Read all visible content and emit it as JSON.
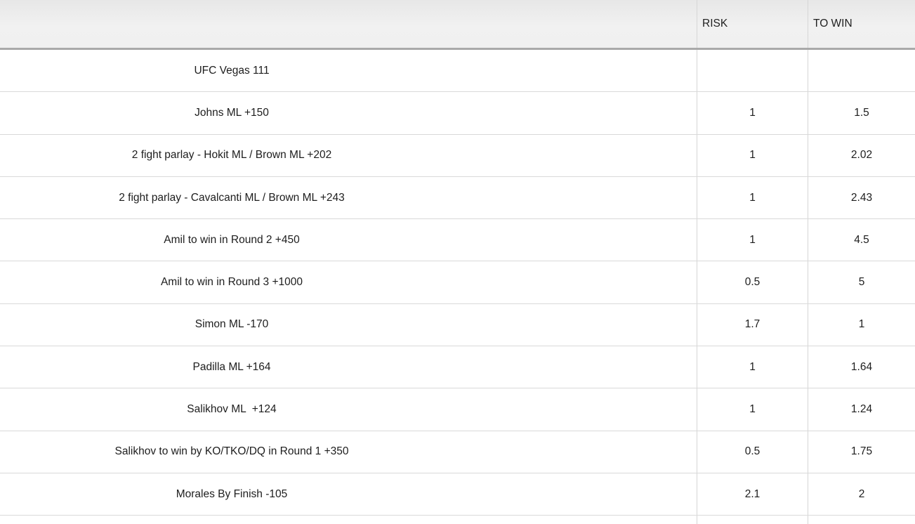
{
  "header": {
    "risk": "RISK",
    "to_win": "TO WIN"
  },
  "rows": [
    {
      "description": "UFC Vegas 111",
      "risk": "",
      "to_win": ""
    },
    {
      "description": "Johns ML +150",
      "risk": "1",
      "to_win": "1.5"
    },
    {
      "description": "2 fight parlay - Hokit ML / Brown ML +202",
      "risk": "1",
      "to_win": "2.02"
    },
    {
      "description": "2 fight parlay - Cavalcanti ML / Brown ML +243",
      "risk": "1",
      "to_win": "2.43"
    },
    {
      "description": "Amil to win in Round 2 +450",
      "risk": "1",
      "to_win": "4.5"
    },
    {
      "description": "Amil to win in Round 3 +1000",
      "risk": "0.5",
      "to_win": "5"
    },
    {
      "description": "Simon ML -170",
      "risk": "1.7",
      "to_win": "1"
    },
    {
      "description": "Padilla ML +164",
      "risk": "1",
      "to_win": "1.64"
    },
    {
      "description": "Salikhov ML  +124",
      "risk": "1",
      "to_win": "1.24"
    },
    {
      "description": "Salikhov to win by KO/TKO/DQ in Round 1 +350",
      "risk": "0.5",
      "to_win": "1.75"
    },
    {
      "description": "Morales By Finish -105",
      "risk": "2.1",
      "to_win": "2"
    }
  ],
  "colors": {
    "header_background": "#f0f0f0",
    "header_border": "#a9a9a9",
    "grid_line": "#d6d6d6",
    "row_divider": "#d9d9d9",
    "text": "#1d1d1d",
    "body_background": "#ffffff"
  }
}
